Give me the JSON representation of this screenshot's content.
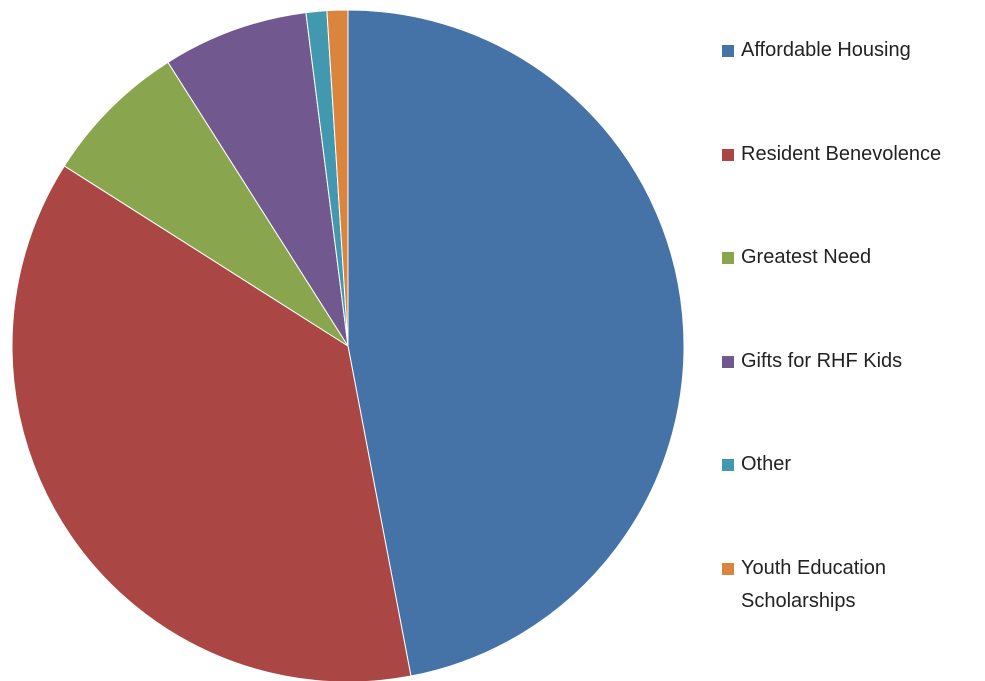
{
  "chart_data": {
    "type": "pie",
    "categories": [
      "Affordable Housing",
      "Resident Benevolence",
      "Greatest Need",
      "Gifts for RHF Kids",
      "Other",
      "Youth Education Scholarships"
    ],
    "values": [
      47,
      37,
      7,
      7,
      1,
      1
    ],
    "colors": [
      "#4572a7",
      "#aa4643",
      "#89a54e",
      "#71588f",
      "#4198af",
      "#db843d"
    ],
    "legend": "right"
  }
}
